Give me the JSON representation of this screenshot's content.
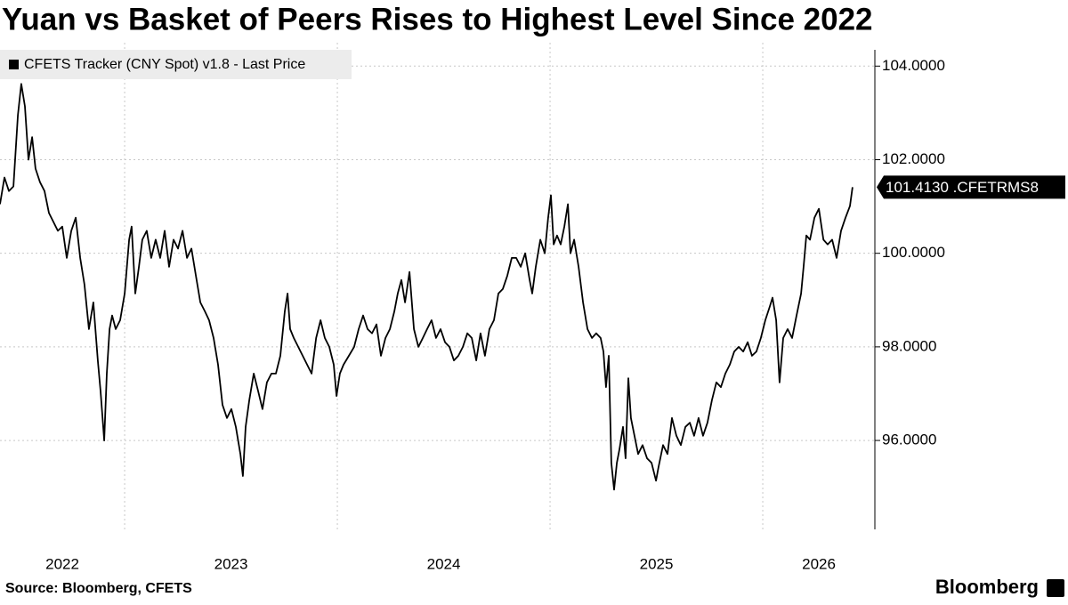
{
  "chart_data": {
    "type": "line",
    "title": "Yuan vs Basket of Peers Rises to Highest Level Since 2022",
    "source": "Source: Bloomberg, CFETS",
    "brand": "Bloomberg",
    "last_label": "101.4130 .CFETRMS8",
    "legend": "top-left",
    "grid": true,
    "xlim": [
      2022.414,
      2026.527
    ],
    "xticks": [
      2022,
      2023,
      2024,
      2025,
      2026
    ],
    "ylim": [
      94.1,
      104.5
    ],
    "yticks": [
      {
        "value": 96,
        "label": "96.0000"
      },
      {
        "value": 98,
        "label": "98.0000"
      },
      {
        "value": 100,
        "label": "100.0000"
      },
      {
        "value": 102,
        "label": "102.0000"
      },
      {
        "value": 104,
        "label": "104.0000"
      }
    ],
    "x": [
      2022.414,
      2022.435,
      2022.456,
      2022.477,
      2022.498,
      2022.514,
      2022.531,
      2022.548,
      2022.565,
      2022.581,
      2022.602,
      2022.623,
      2022.644,
      2022.665,
      2022.686,
      2022.707,
      2022.728,
      2022.749,
      2022.77,
      2022.791,
      2022.811,
      2022.832,
      2022.853,
      2022.874,
      2022.887,
      2022.904,
      2022.916,
      2022.929,
      2022.941,
      2022.958,
      2022.979,
      2023.0,
      2023.021,
      2023.033,
      2023.05,
      2023.067,
      2023.083,
      2023.104,
      2023.125,
      2023.146,
      2023.167,
      2023.188,
      2023.209,
      2023.23,
      2023.251,
      2023.272,
      2023.293,
      2023.314,
      2023.335,
      2023.356,
      2023.377,
      2023.397,
      2023.418,
      2023.439,
      2023.46,
      2023.481,
      2023.502,
      2023.523,
      2023.544,
      2023.556,
      2023.569,
      2023.586,
      2023.607,
      2023.628,
      2023.648,
      2023.669,
      2023.69,
      2023.711,
      2023.732,
      2023.753,
      2023.766,
      2023.778,
      2023.795,
      2023.816,
      2023.837,
      2023.858,
      2023.879,
      2023.9,
      2023.921,
      2023.941,
      2023.962,
      2023.983,
      2023.996,
      2024.012,
      2024.029,
      2024.054,
      2024.079,
      2024.1,
      2024.121,
      2024.142,
      2024.163,
      2024.184,
      2024.205,
      2024.226,
      2024.247,
      2024.268,
      2024.284,
      2024.301,
      2024.318,
      2024.339,
      2024.36,
      2024.381,
      2024.402,
      2024.422,
      2024.443,
      2024.464,
      2024.485,
      2024.506,
      2024.527,
      2024.548,
      2024.569,
      2024.59,
      2024.611,
      2024.632,
      2024.653,
      2024.673,
      2024.694,
      2024.715,
      2024.736,
      2024.757,
      2024.778,
      2024.799,
      2024.82,
      2024.841,
      2024.862,
      2024.883,
      2024.904,
      2024.916,
      2024.933,
      2024.954,
      2024.975,
      2024.991,
      2025.004,
      2025.017,
      2025.033,
      2025.05,
      2025.067,
      2025.084,
      2025.096,
      2025.113,
      2025.134,
      2025.155,
      2025.176,
      2025.197,
      2025.217,
      2025.238,
      2025.251,
      2025.263,
      2025.276,
      2025.288,
      2025.301,
      2025.314,
      2025.326,
      2025.343,
      2025.355,
      2025.368,
      2025.38,
      2025.397,
      2025.414,
      2025.435,
      2025.456,
      2025.477,
      2025.498,
      2025.51,
      2025.531,
      2025.552,
      2025.573,
      2025.594,
      2025.615,
      2025.636,
      2025.657,
      2025.677,
      2025.698,
      2025.719,
      2025.74,
      2025.761,
      2025.782,
      2025.803,
      2025.824,
      2025.845,
      2025.866,
      2025.887,
      2025.908,
      2025.929,
      2025.949,
      2025.97,
      2025.991,
      2026.012,
      2026.033,
      2026.046,
      2026.063,
      2026.079,
      2026.096,
      2026.117,
      2026.138,
      2026.159,
      2026.18,
      2026.192,
      2026.205,
      2026.222,
      2026.243,
      2026.264,
      2026.285,
      2026.305,
      2026.326,
      2026.347,
      2026.368,
      2026.389,
      2026.41,
      2026.422
    ],
    "series": [
      {
        "name": "CFETS Tracker (CNY Spot) v1.8 - Last Price",
        "color": "#000000",
        "values": [
          101.05,
          101.62,
          101.33,
          101.43,
          102.95,
          103.62,
          103.14,
          102.0,
          102.48,
          101.81,
          101.52,
          101.33,
          100.86,
          100.67,
          100.48,
          100.57,
          99.9,
          100.48,
          100.76,
          99.9,
          99.33,
          98.38,
          98.95,
          97.71,
          97.05,
          96.0,
          97.43,
          98.38,
          98.67,
          98.38,
          98.57,
          99.14,
          100.29,
          100.57,
          99.14,
          99.71,
          100.29,
          100.48,
          99.9,
          100.29,
          99.9,
          100.48,
          99.71,
          100.29,
          100.1,
          100.48,
          99.9,
          100.1,
          99.52,
          98.95,
          98.76,
          98.57,
          98.19,
          97.62,
          96.76,
          96.48,
          96.67,
          96.29,
          95.71,
          95.24,
          96.29,
          96.86,
          97.43,
          97.05,
          96.67,
          97.24,
          97.43,
          97.43,
          97.81,
          98.76,
          99.14,
          98.38,
          98.19,
          98.0,
          97.81,
          97.62,
          97.43,
          98.19,
          98.57,
          98.19,
          98.0,
          97.62,
          96.95,
          97.43,
          97.62,
          97.81,
          98.0,
          98.38,
          98.67,
          98.38,
          98.29,
          98.48,
          97.81,
          98.19,
          98.38,
          98.76,
          99.14,
          99.43,
          98.95,
          99.6,
          98.38,
          98.0,
          98.19,
          98.38,
          98.57,
          98.19,
          98.38,
          98.1,
          98.0,
          97.71,
          97.81,
          98.0,
          98.29,
          98.19,
          97.71,
          98.29,
          97.81,
          98.38,
          98.57,
          99.14,
          99.24,
          99.52,
          99.9,
          99.9,
          99.71,
          100.0,
          99.43,
          99.14,
          99.71,
          100.29,
          100.0,
          100.76,
          101.24,
          100.19,
          100.38,
          100.19,
          100.57,
          101.05,
          100.0,
          100.29,
          99.71,
          98.95,
          98.38,
          98.19,
          98.29,
          98.19,
          97.9,
          97.14,
          97.81,
          95.52,
          94.95,
          95.52,
          95.81,
          96.29,
          95.62,
          97.33,
          96.48,
          96.1,
          95.71,
          95.9,
          95.62,
          95.52,
          95.14,
          95.43,
          95.9,
          95.71,
          96.48,
          96.1,
          95.9,
          96.29,
          96.38,
          96.1,
          96.48,
          96.1,
          96.38,
          96.86,
          97.24,
          97.14,
          97.43,
          97.62,
          97.9,
          98.0,
          97.9,
          98.1,
          97.81,
          97.9,
          98.19,
          98.57,
          98.86,
          99.05,
          98.57,
          97.24,
          98.19,
          98.38,
          98.19,
          98.67,
          99.14,
          99.71,
          100.38,
          100.29,
          100.76,
          100.95,
          100.29,
          100.19,
          100.29,
          99.9,
          100.48,
          100.76,
          101.01,
          101.413
        ]
      }
    ]
  }
}
